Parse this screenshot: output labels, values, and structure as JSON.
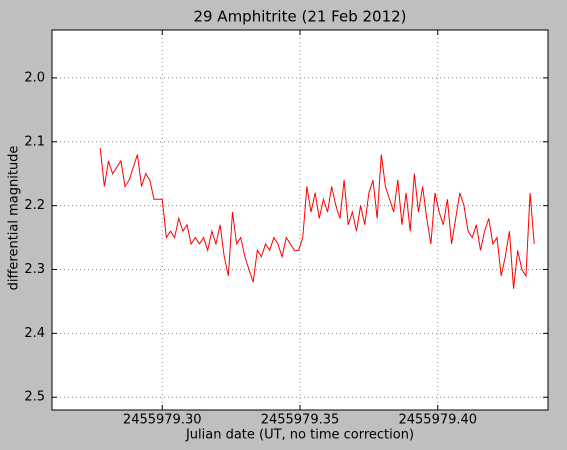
{
  "chart_data": {
    "type": "line",
    "title": "29 Amphitrite (21 Feb 2012)",
    "x_label": "Julian date (UT, no time correction)",
    "y_label": "differential magnitude",
    "xlim": [
      2455979.26,
      2455979.44
    ],
    "xticks": [
      {
        "value": 2455979.3,
        "label": "2455979.30"
      },
      {
        "value": 2455979.35,
        "label": "2455979.35"
      },
      {
        "value": 2455979.4,
        "label": "2455979.40"
      }
    ],
    "ylim": [
      1.925,
      2.52
    ],
    "y_inverted": true,
    "yticks": [
      {
        "value": 2.0,
        "label": "2.0"
      },
      2.1,
      2.2,
      2.3,
      2.4,
      2.5
    ],
    "grid": true,
    "series": [
      {
        "color": "#ff0000",
        "x": [
          2455979.2775,
          2455979.279,
          2455979.2805,
          2455979.282,
          2455979.2835,
          2455979.285,
          2455979.2865,
          2455979.288,
          2455979.2895,
          2455979.291,
          2455979.2925,
          2455979.294,
          2455979.2955,
          2455979.297,
          2455979.2985,
          2455979.3,
          2455979.3015,
          2455979.303,
          2455979.3045,
          2455979.306,
          2455979.3075,
          2455979.309,
          2455979.3105,
          2455979.312,
          2455979.3135,
          2455979.315,
          2455979.3165,
          2455979.318,
          2455979.3195,
          2455979.321,
          2455979.3225,
          2455979.324,
          2455979.3255,
          2455979.327,
          2455979.3285,
          2455979.33,
          2455979.3315,
          2455979.333,
          2455979.3345,
          2455979.336,
          2455979.3375,
          2455979.339,
          2455979.3405,
          2455979.342,
          2455979.3435,
          2455979.345,
          2455979.3465,
          2455979.348,
          2455979.3495,
          2455979.351,
          2455979.3525,
          2455979.354,
          2455979.3555,
          2455979.357,
          2455979.3585,
          2455979.36,
          2455979.3615,
          2455979.363,
          2455979.3645,
          2455979.366,
          2455979.3675,
          2455979.369,
          2455979.3705,
          2455979.372,
          2455979.3735,
          2455979.375,
          2455979.3765,
          2455979.378,
          2455979.3795,
          2455979.381,
          2455979.3825,
          2455979.384,
          2455979.3855,
          2455979.387,
          2455979.3885,
          2455979.39,
          2455979.3915,
          2455979.393,
          2455979.3945,
          2455979.396,
          2455979.3975,
          2455979.399,
          2455979.4005,
          2455979.402,
          2455979.4035,
          2455979.405,
          2455979.4065,
          2455979.408,
          2455979.4095,
          2455979.411,
          2455979.4125,
          2455979.414,
          2455979.4155,
          2455979.417,
          2455979.4185,
          2455979.42,
          2455979.4215,
          2455979.423,
          2455979.4245,
          2455979.426,
          2455979.4275,
          2455979.429,
          2455979.4305,
          2455979.432,
          2455979.4335,
          2455979.435
        ],
        "values": [
          2.11,
          2.17,
          2.13,
          2.15,
          2.14,
          2.13,
          2.17,
          2.16,
          2.14,
          2.12,
          2.17,
          2.15,
          2.16,
          2.19,
          2.19,
          2.19,
          2.25,
          2.24,
          2.25,
          2.22,
          2.24,
          2.23,
          2.26,
          2.25,
          2.26,
          2.25,
          2.27,
          2.24,
          2.26,
          2.23,
          2.28,
          2.31,
          2.21,
          2.26,
          2.25,
          2.28,
          2.3,
          2.32,
          2.27,
          2.28,
          2.26,
          2.27,
          2.25,
          2.26,
          2.28,
          2.25,
          2.26,
          2.27,
          2.27,
          2.25,
          2.17,
          2.21,
          2.18,
          2.22,
          2.19,
          2.21,
          2.17,
          2.2,
          2.22,
          2.16,
          2.23,
          2.21,
          2.24,
          2.2,
          2.23,
          2.18,
          2.16,
          2.22,
          2.12,
          2.17,
          2.19,
          2.21,
          2.16,
          2.23,
          2.18,
          2.24,
          2.15,
          2.21,
          2.17,
          2.22,
          2.26,
          2.18,
          2.21,
          2.23,
          2.19,
          2.26,
          2.22,
          2.18,
          2.2,
          2.24,
          2.25,
          2.23,
          2.27,
          2.24,
          2.22,
          2.26,
          2.25,
          2.31,
          2.28,
          2.24,
          2.33,
          2.27,
          2.3,
          2.31,
          2.18,
          2.26
        ]
      }
    ]
  }
}
